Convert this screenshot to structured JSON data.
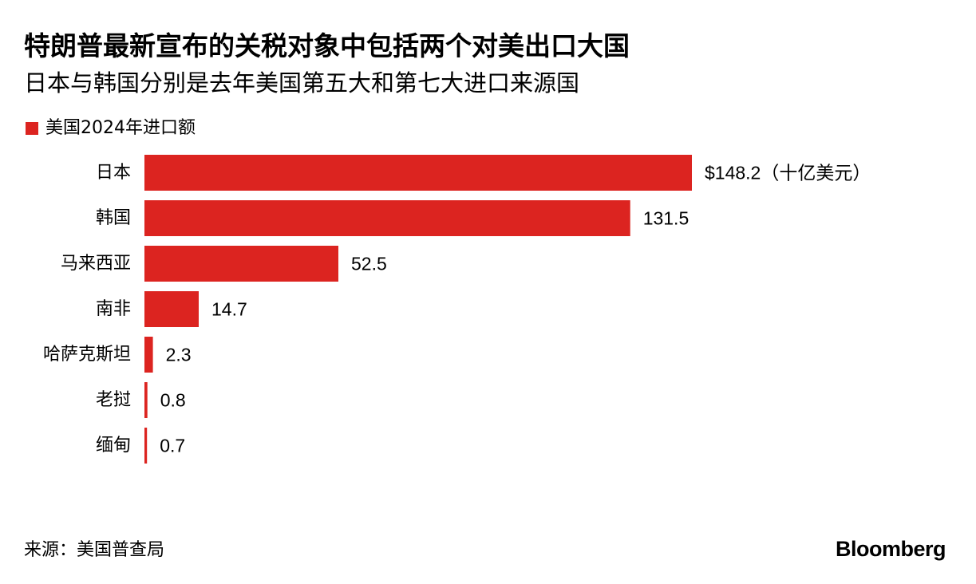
{
  "header": {
    "title": "特朗普最新宣布的关税对象中包括两个对美出口大国",
    "subtitle": "日本与韩国分别是去年美国第五大和第七大进口来源国"
  },
  "legend": {
    "label": "美国2024年进口额",
    "color": "#dc2420"
  },
  "chart_data": {
    "type": "bar",
    "orientation": "horizontal",
    "title": "特朗普最新宣布的关税对象中包括两个对美出口大国",
    "subtitle": "日本与韩国分别是去年美国第五大和第七大进口来源国",
    "categories": [
      "日本",
      "韩国",
      "马来西亚",
      "南非",
      "哈萨克斯坦",
      "老挝",
      "缅甸"
    ],
    "series": [
      {
        "name": "美国2024年进口额",
        "color": "#dc2420",
        "values": [
          148.2,
          131.5,
          52.5,
          14.7,
          2.3,
          0.8,
          0.7
        ]
      }
    ],
    "value_labels": [
      "$148.2（十亿美元）",
      "131.5",
      "52.5",
      "14.7",
      "2.3",
      "0.8",
      "0.7"
    ],
    "xlim": [
      0,
      148.2
    ],
    "grid": false,
    "legend_position": "top-left"
  },
  "footer": {
    "source": "来源：美国普查局",
    "brand": "Bloomberg"
  }
}
